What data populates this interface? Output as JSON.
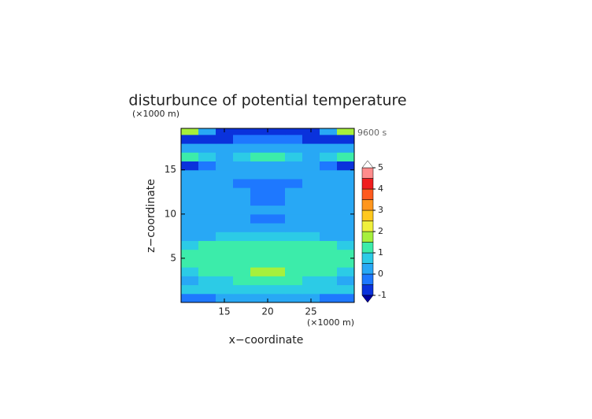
{
  "chart_data": {
    "type": "contour",
    "title": "disturbunce of potential temperature",
    "x_label": "x−coordinate",
    "y_label": "z−coordinate",
    "x_unit": "(×1000 m)",
    "y_unit": "(×1000 m)",
    "time_label": "9600 s",
    "xlim": [
      10,
      30
    ],
    "ylim": [
      0,
      19.7
    ],
    "xticks": [
      15,
      20,
      25
    ],
    "yticks": [
      5,
      10,
      15
    ],
    "levels": [
      -1,
      -0.5,
      0,
      0.5,
      1,
      1.5,
      2,
      2.5,
      3,
      3.5,
      4,
      4.5,
      5
    ],
    "level_colors": [
      "#0a32dc",
      "#1e78ff",
      "#28a8f5",
      "#2ccbe6",
      "#3cecaa",
      "#a6f03c",
      "#f0f03c",
      "#ffc81e",
      "#ff961e",
      "#ff5a1e",
      "#f01e1e",
      "#ff8c8c",
      "#ffb4b4"
    ],
    "under_color": "#0000a0",
    "over_color": "#ffffff",
    "colorbar_ticks": [
      -1,
      0,
      1,
      2,
      3,
      4,
      5
    ],
    "x": [
      11,
      13,
      15,
      17,
      19,
      21,
      23,
      25,
      27,
      29
    ],
    "z": [
      0.5,
      1.5,
      2.5,
      3.5,
      4.5,
      5.5,
      6.5,
      7.5,
      8.5,
      9.5,
      10.5,
      11.5,
      12.5,
      13.5,
      14.5,
      15.5,
      16.5,
      17.5,
      18.5,
      19.5
    ],
    "values": [
      [
        -0.2,
        -0.2,
        0.2,
        0.2,
        0.2,
        0.2,
        0.2,
        0.2,
        -0.2,
        -0.2
      ],
      [
        0.7,
        0.7,
        0.7,
        0.6,
        0.6,
        0.6,
        0.6,
        0.7,
        0.7,
        0.7
      ],
      [
        0.3,
        0.6,
        0.8,
        1.0,
        1.2,
        1.2,
        1.0,
        0.8,
        0.6,
        0.3
      ],
      [
        0.8,
        1.0,
        1.2,
        1.3,
        1.7,
        1.7,
        1.3,
        1.2,
        1.0,
        0.8
      ],
      [
        1.1,
        1.2,
        1.2,
        1.3,
        1.3,
        1.3,
        1.3,
        1.2,
        1.2,
        1.1
      ],
      [
        1.2,
        1.2,
        1.3,
        1.3,
        1.3,
        1.3,
        1.3,
        1.3,
        1.2,
        1.2
      ],
      [
        0.8,
        1.0,
        1.1,
        1.2,
        1.4,
        1.4,
        1.2,
        1.1,
        1.0,
        0.8
      ],
      [
        0.3,
        0.3,
        0.7,
        0.7,
        0.8,
        0.8,
        0.7,
        0.7,
        0.3,
        0.3
      ],
      [
        0.2,
        0.2,
        0.2,
        0.2,
        0.2,
        0.2,
        0.2,
        0.2,
        0.2,
        0.2
      ],
      [
        0.2,
        0.2,
        0.2,
        0.2,
        -0.1,
        -0.1,
        0.2,
        0.2,
        0.2,
        0.2
      ],
      [
        0.2,
        0.2,
        0.3,
        0.3,
        0.2,
        0.2,
        0.3,
        0.3,
        0.2,
        0.2
      ],
      [
        0.2,
        0.2,
        0.2,
        0.2,
        -0.2,
        -0.2,
        0.2,
        0.2,
        0.2,
        0.2
      ],
      [
        0.3,
        0.3,
        0.2,
        0.2,
        -0.3,
        -0.3,
        0.2,
        0.2,
        0.3,
        0.3
      ],
      [
        0.2,
        0.2,
        0.2,
        -0.2,
        -0.4,
        -0.4,
        -0.2,
        0.2,
        0.2,
        0.2
      ],
      [
        0.3,
        0.2,
        0.2,
        0.2,
        0.2,
        0.2,
        0.2,
        0.2,
        0.2,
        0.3
      ],
      [
        -0.6,
        -0.3,
        0.2,
        0.3,
        0.3,
        0.3,
        0.3,
        0.2,
        -0.3,
        -0.6
      ],
      [
        1.2,
        0.8,
        0.3,
        0.9,
        1.3,
        1.3,
        0.9,
        0.3,
        0.8,
        1.2
      ],
      [
        0.3,
        0.3,
        0.3,
        0.2,
        0.2,
        0.2,
        0.2,
        0.3,
        0.3,
        0.3
      ],
      [
        -0.6,
        -0.6,
        -0.6,
        -0.3,
        -0.3,
        -0.3,
        -0.3,
        -0.6,
        -0.6,
        -0.6
      ],
      [
        1.8,
        0.2,
        -0.7,
        -0.7,
        -0.7,
        -0.7,
        -0.7,
        -0.7,
        0.2,
        1.8
      ]
    ]
  }
}
